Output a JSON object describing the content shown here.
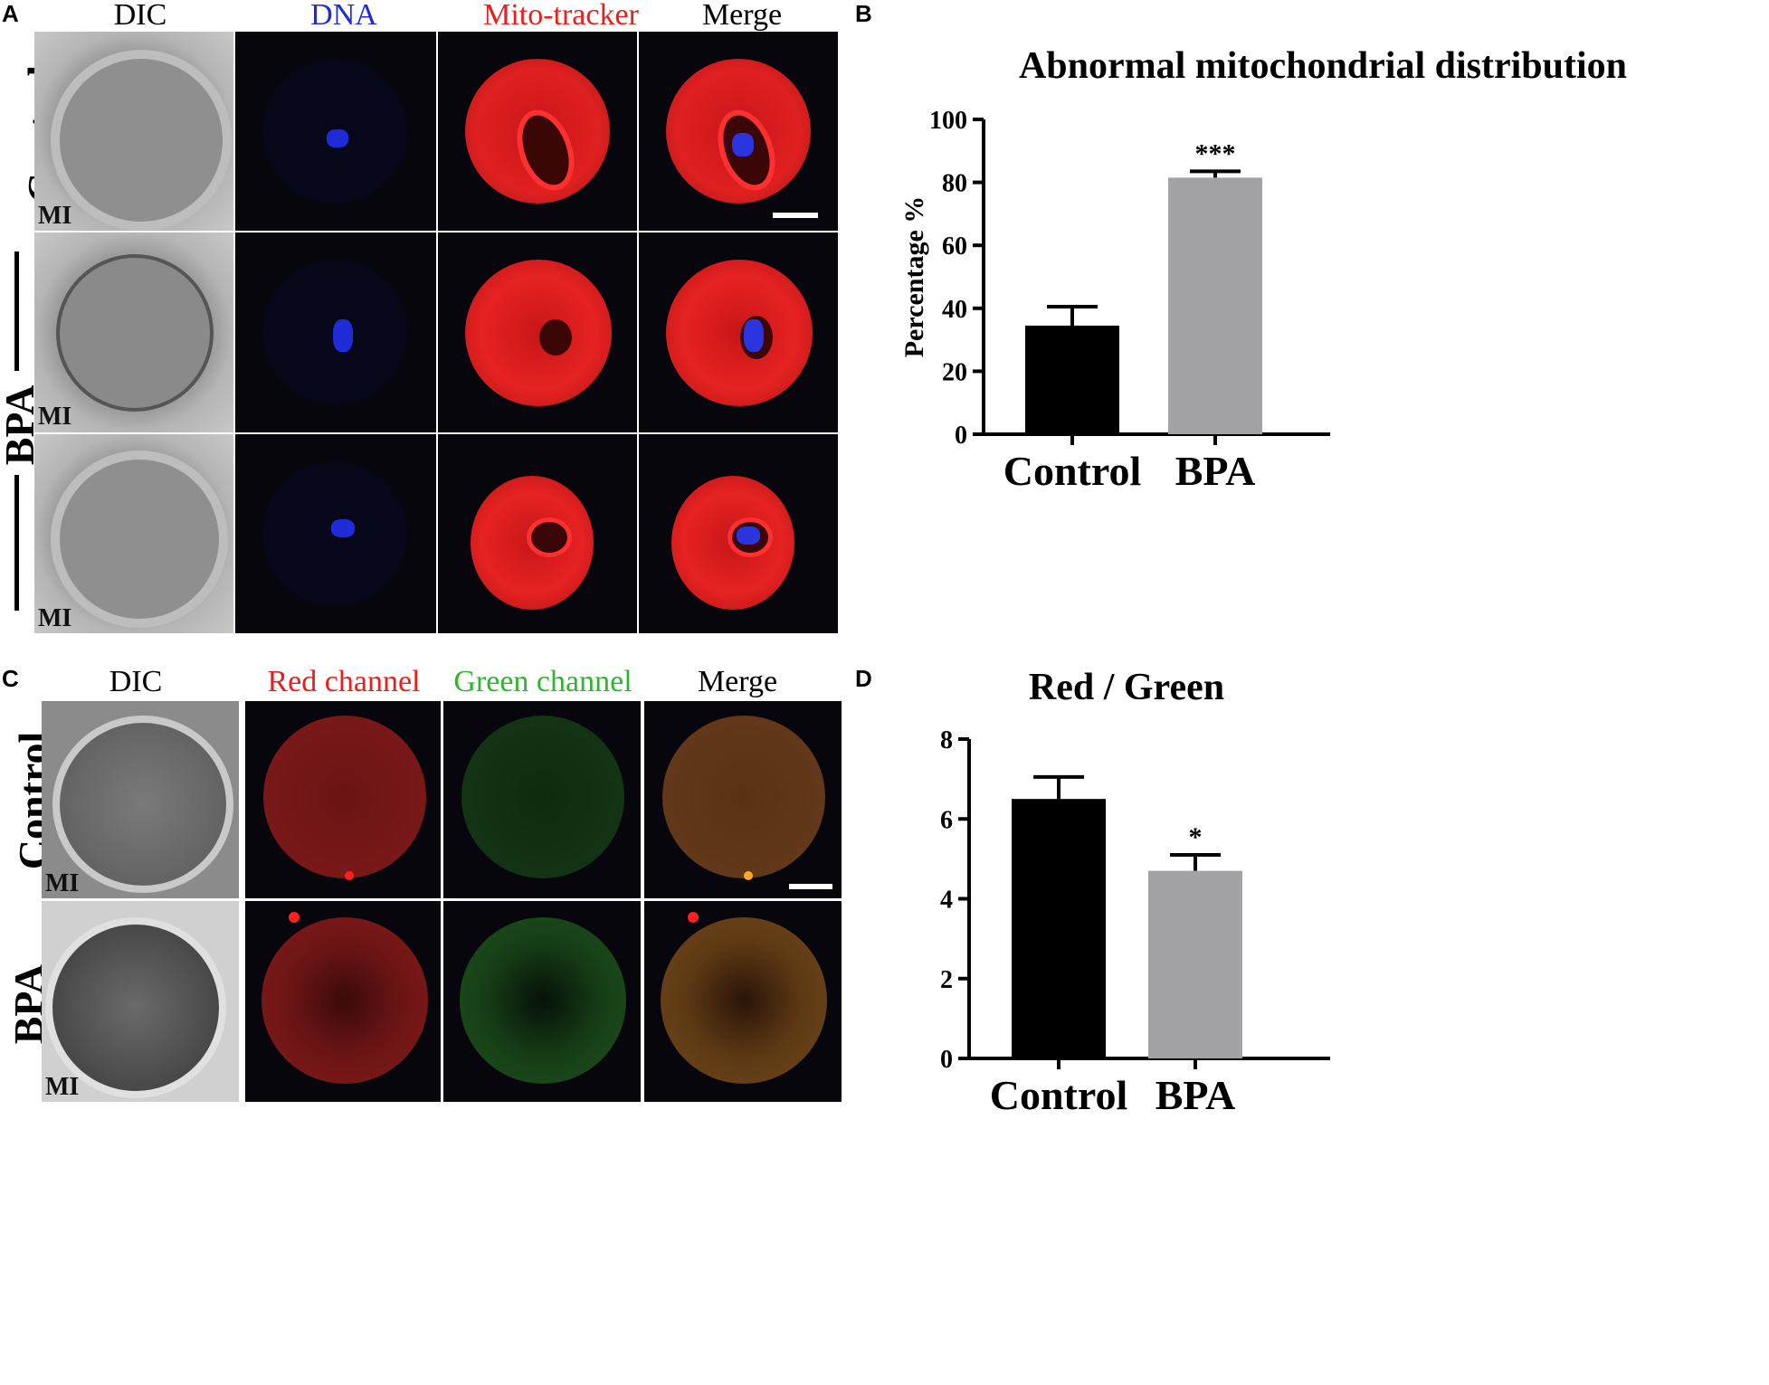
{
  "panels": {
    "A": {
      "letter": "A",
      "columns": [
        "DIC",
        "DNA",
        "Mito-tracker",
        "Merge"
      ],
      "rows": [
        "Control",
        "BPA"
      ],
      "stage_label": "MI"
    },
    "B": {
      "letter": "B"
    },
    "C": {
      "letter": "C",
      "columns": [
        "DIC",
        "Red channel",
        "Green channel",
        "Merge"
      ],
      "rows": [
        "Control",
        "BPA"
      ],
      "stage_label": "MI"
    },
    "D": {
      "letter": "D"
    }
  },
  "colors": {
    "dna_blue": "#1f2bd6",
    "mito_red": "#e8201d",
    "green_label": "#2fb52f",
    "control_bar": "#000000",
    "bpa_bar": "#a3a3a6"
  },
  "chart_data": [
    {
      "type": "bar",
      "title": "Abnormal mitochondrial distribution",
      "categories": [
        "Control",
        "BPA"
      ],
      "values": [
        34.5,
        81.5
      ],
      "errors": [
        6,
        2
      ],
      "significance": [
        "",
        "***"
      ],
      "ylabel": "Percentage %",
      "ylim": [
        0,
        100
      ],
      "yticks": [
        0,
        20,
        40,
        60,
        80,
        100
      ]
    },
    {
      "type": "bar",
      "title": "Red / Green",
      "categories": [
        "Control",
        "BPA"
      ],
      "values": [
        6.5,
        4.7
      ],
      "errors": [
        0.55,
        0.4
      ],
      "significance": [
        "",
        "*"
      ],
      "ylabel": "",
      "ylim": [
        0,
        8
      ],
      "yticks": [
        0,
        2,
        4,
        6,
        8
      ]
    }
  ]
}
